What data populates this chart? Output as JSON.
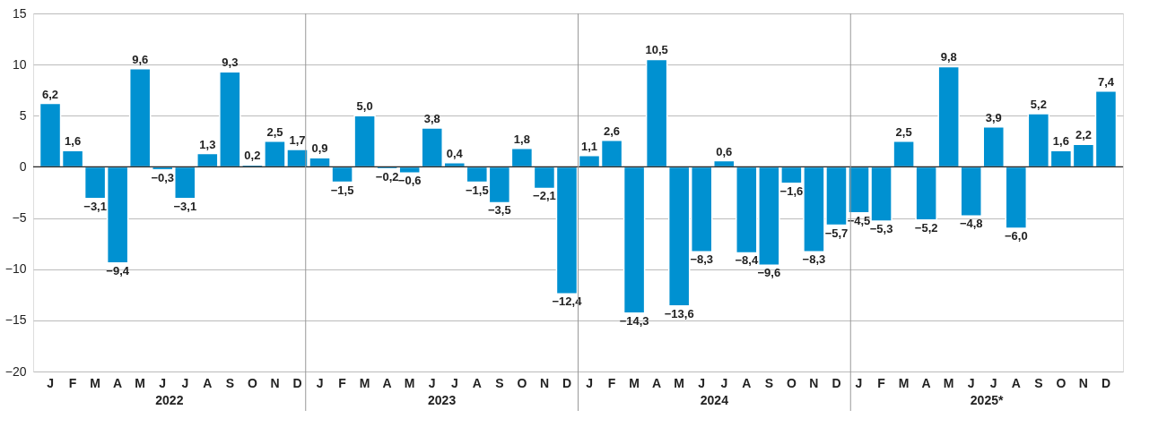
{
  "chart_data": {
    "type": "bar",
    "categories": [
      "J",
      "F",
      "M",
      "A",
      "M",
      "J",
      "J",
      "A",
      "S",
      "O",
      "N",
      "D",
      "J",
      "F",
      "M",
      "A",
      "M",
      "J",
      "J",
      "A",
      "S",
      "O",
      "N",
      "D",
      "J",
      "F",
      "M",
      "A",
      "M",
      "J",
      "J",
      "A",
      "S",
      "O",
      "N",
      "D",
      "J",
      "F",
      "M",
      "A",
      "M",
      "J",
      "J",
      "A",
      "S",
      "O",
      "N",
      "D"
    ],
    "values": [
      6.2,
      1.6,
      -3.1,
      -9.4,
      9.6,
      -0.3,
      -3.1,
      1.3,
      9.3,
      0.2,
      2.5,
      1.7,
      0.9,
      -1.5,
      5.0,
      -0.2,
      -0.6,
      3.8,
      0.4,
      -1.5,
      -3.5,
      1.8,
      -2.1,
      -12.4,
      1.1,
      2.6,
      -14.3,
      10.5,
      -13.6,
      -8.3,
      0.6,
      -8.4,
      -9.6,
      -1.6,
      -8.3,
      -5.7,
      -4.5,
      -5.3,
      2.5,
      -5.2,
      9.8,
      -4.8,
      3.9,
      -6.0,
      5.2,
      1.6,
      2.2,
      7.4
    ],
    "value_labels": [
      "6,2",
      "1,6",
      "−3,1",
      "−9,4",
      "9,6",
      "−0,3",
      "−3,1",
      "1,3",
      "9,3",
      "0,2",
      "2,5",
      "1,7",
      "0,9",
      "−1,5",
      "5,0",
      "−0,2",
      "−0,6",
      "3,8",
      "0,4",
      "−1,5",
      "−3,5",
      "1,8",
      "−2,1",
      "−12,4",
      "1,1",
      "2,6",
      "−14,3",
      "10,5",
      "−13,6",
      "−8,3",
      "0,6",
      "−8,4",
      "−9,6",
      "−1,6",
      "−8,3",
      "−5,7",
      "−4,5",
      "−5,3",
      "2,5",
      "−5,2",
      "9,8",
      "−4,8",
      "3,9",
      "−6,0",
      "5,2",
      "1,6",
      "2,2",
      "7,4"
    ],
    "color": "#0091d1",
    "annotations": [
      "2022",
      "2023",
      "2024",
      "2025*"
    ],
    "ylim": [
      -20,
      15
    ],
    "yticks": [
      -20,
      -15,
      -10,
      -5,
      0,
      5,
      10,
      15
    ],
    "grid": "y"
  }
}
